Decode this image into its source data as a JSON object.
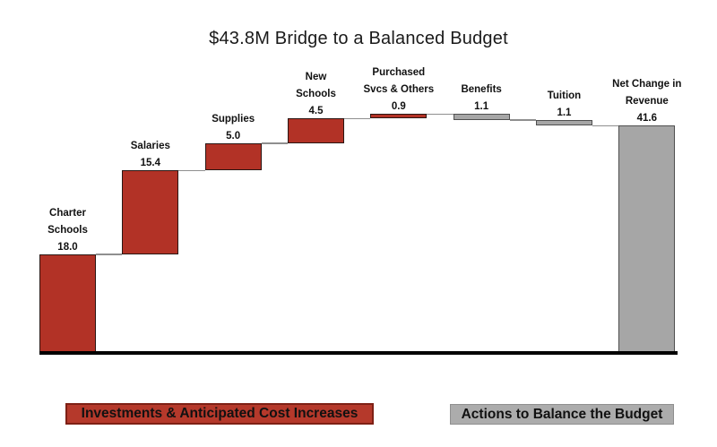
{
  "title": "$43.8M Bridge to a Balanced Budget",
  "colors": {
    "increase_fill": "#B23226",
    "decrease_fill": "#A6A6A6",
    "connector": "#8f8f8f",
    "baseline": "#000000",
    "legend_increase_fill": "#B5392B",
    "legend_increase_border": "#7E2015",
    "legend_decrease_fill": "#ACACAC"
  },
  "legend": {
    "increase_label": "Investments & Anticipated Cost Increases",
    "decrease_label": "Actions to Balance the Budget"
  },
  "chart_data": {
    "type": "bar",
    "subtype": "waterfall",
    "title": "$43.8M Bridge to a Balanced Budget",
    "xlabel": "",
    "ylabel": "",
    "axis_visible": false,
    "grid": false,
    "total": 43.8,
    "categories": [
      "Charter Schools",
      "Salaries",
      "Supplies",
      "New Schools",
      "Purchased Svcs & Others",
      "Benefits",
      "Tuition",
      "Net Change in Revenue"
    ],
    "values": [
      18.0,
      15.4,
      5.0,
      4.5,
      0.9,
      1.1,
      1.1,
      41.6
    ],
    "cumulative_after": [
      18.0,
      33.4,
      38.4,
      42.9,
      43.8,
      42.7,
      41.6,
      0
    ],
    "bars": [
      {
        "name": "Charter Schools",
        "label_lines": [
          "Charter",
          "Schools"
        ],
        "value": 18.0,
        "value_label": "18.0",
        "direction": "up",
        "group": "increase"
      },
      {
        "name": "Salaries",
        "label_lines": [
          "Salaries"
        ],
        "value": 15.4,
        "value_label": "15.4",
        "direction": "up",
        "group": "increase"
      },
      {
        "name": "Supplies",
        "label_lines": [
          "Supplies"
        ],
        "value": 5.0,
        "value_label": "5.0",
        "direction": "up",
        "group": "increase"
      },
      {
        "name": "New Schools",
        "label_lines": [
          "New",
          "Schools"
        ],
        "value": 4.5,
        "value_label": "4.5",
        "direction": "up",
        "group": "increase"
      },
      {
        "name": "Purchased Svcs & Others",
        "label_lines": [
          "Purchased",
          "Svcs & Others"
        ],
        "value": 0.9,
        "value_label": "0.9",
        "direction": "up",
        "group": "increase"
      },
      {
        "name": "Benefits",
        "label_lines": [
          "Benefits"
        ],
        "value": 1.1,
        "value_label": "1.1",
        "direction": "down",
        "group": "decrease"
      },
      {
        "name": "Tuition",
        "label_lines": [
          "Tuition"
        ],
        "value": 1.1,
        "value_label": "1.1",
        "direction": "down",
        "group": "decrease"
      },
      {
        "name": "Net Change in Revenue",
        "label_lines": [
          "Net Change in",
          "Revenue"
        ],
        "value": 41.6,
        "value_label": "41.6",
        "direction": "total",
        "group": "decrease"
      }
    ]
  }
}
